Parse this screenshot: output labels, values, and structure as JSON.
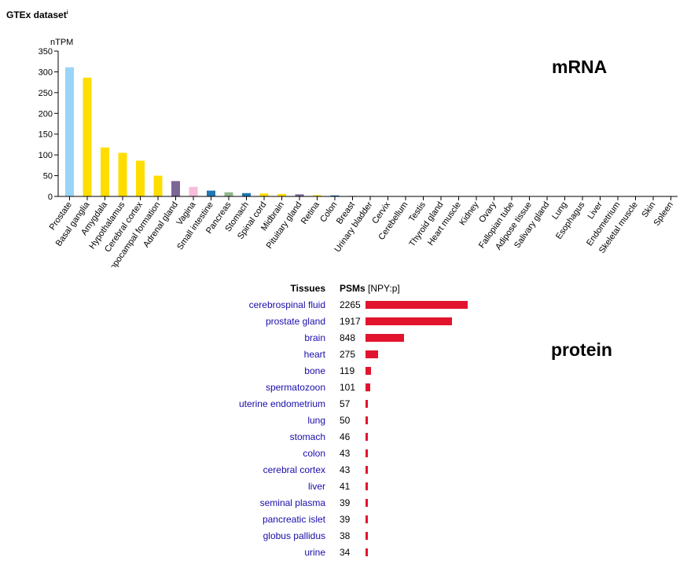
{
  "header": {
    "title": "GTEx dataset",
    "info_mark": "i"
  },
  "labels": {
    "mrna": "mRNA",
    "protein": "protein"
  },
  "colors": {
    "protein_bar": "#e2142d",
    "link": "#1a0dab"
  },
  "chart_data": {
    "type": "bar",
    "ylabel": "nTPM",
    "ylim": [
      0,
      350
    ],
    "yticks": [
      0,
      50,
      100,
      150,
      200,
      250,
      300,
      350
    ],
    "categories": [
      "Prostate",
      "Basal ganglia",
      "Amygdala",
      "Hypothalamus",
      "Cerebral cortex",
      "Hippocampal formation",
      "Adrenal gland",
      "Vagina",
      "Small intestine",
      "Pancreas",
      "Stomach",
      "Spinal cord",
      "Midbrain",
      "Pituitary gland",
      "Retina",
      "Colon",
      "Breast",
      "Urinary bladder",
      "Cervix",
      "Cerebellum",
      "Testis",
      "Thyroid gland",
      "Heart muscle",
      "Kidney",
      "Ovary",
      "Fallopian tube",
      "Adipose tissue",
      "Salivary gland",
      "Lung",
      "Esophagus",
      "Liver",
      "Endometrium",
      "Skeletal muscle",
      "Skin",
      "Spleen"
    ],
    "values": [
      311,
      286,
      118,
      105,
      86,
      50,
      37,
      23,
      14,
      10,
      8,
      7,
      6,
      5,
      3,
      2.5,
      1.5,
      1.2,
      1,
      1,
      0.8,
      0.8,
      0.5,
      0.3,
      0.3,
      0.3,
      0.2,
      0.2,
      0.2,
      0.2,
      0.1,
      0.1,
      0.1,
      0.1,
      0.1
    ],
    "colors": [
      "#99d5f7",
      "#ffdd00",
      "#ffdd00",
      "#ffdd00",
      "#ffdd00",
      "#ffdd00",
      "#7b6696",
      "#f7bedb",
      "#1f78b4",
      "#8fb88c",
      "#1f78b4",
      "#ffdd00",
      "#ffdd00",
      "#7b6696",
      "#ffdd00",
      "#1f78b4",
      "#f7bedb",
      "#f7bedb",
      "#f7bedb",
      "#ffdd00",
      "#ab9f80",
      "#7b6696",
      "#d6a0b9",
      "#c9b8d6",
      "#f7bedb",
      "#f7bedb",
      "#a6dcb5",
      "#1f78b4",
      "#aaaaaa",
      "#1f78b4",
      "#aaaaaa",
      "#f7bedb",
      "#d6a0b9",
      "#aaaaaa",
      "#aaaaaa"
    ],
    "grid": false,
    "legend": "none"
  },
  "protein": {
    "header_tissue": "Tissues",
    "header_psm": "PSMs",
    "header_psm_unit": "[NPY:p]",
    "max": 2265,
    "rows": [
      {
        "tissue": "cerebrospinal fluid",
        "psm": 2265
      },
      {
        "tissue": "prostate gland",
        "psm": 1917
      },
      {
        "tissue": "brain",
        "psm": 848
      },
      {
        "tissue": "heart",
        "psm": 275
      },
      {
        "tissue": "bone",
        "psm": 119
      },
      {
        "tissue": "spermatozoon",
        "psm": 101
      },
      {
        "tissue": "uterine endometrium",
        "psm": 57
      },
      {
        "tissue": "lung",
        "psm": 50
      },
      {
        "tissue": "stomach",
        "psm": 46
      },
      {
        "tissue": "colon",
        "psm": 43
      },
      {
        "tissue": "cerebral cortex",
        "psm": 43
      },
      {
        "tissue": "liver",
        "psm": 41
      },
      {
        "tissue": "seminal plasma",
        "psm": 39
      },
      {
        "tissue": "pancreatic islet",
        "psm": 39
      },
      {
        "tissue": "globus pallidus",
        "psm": 38
      },
      {
        "tissue": "urine",
        "psm": 34
      }
    ]
  }
}
